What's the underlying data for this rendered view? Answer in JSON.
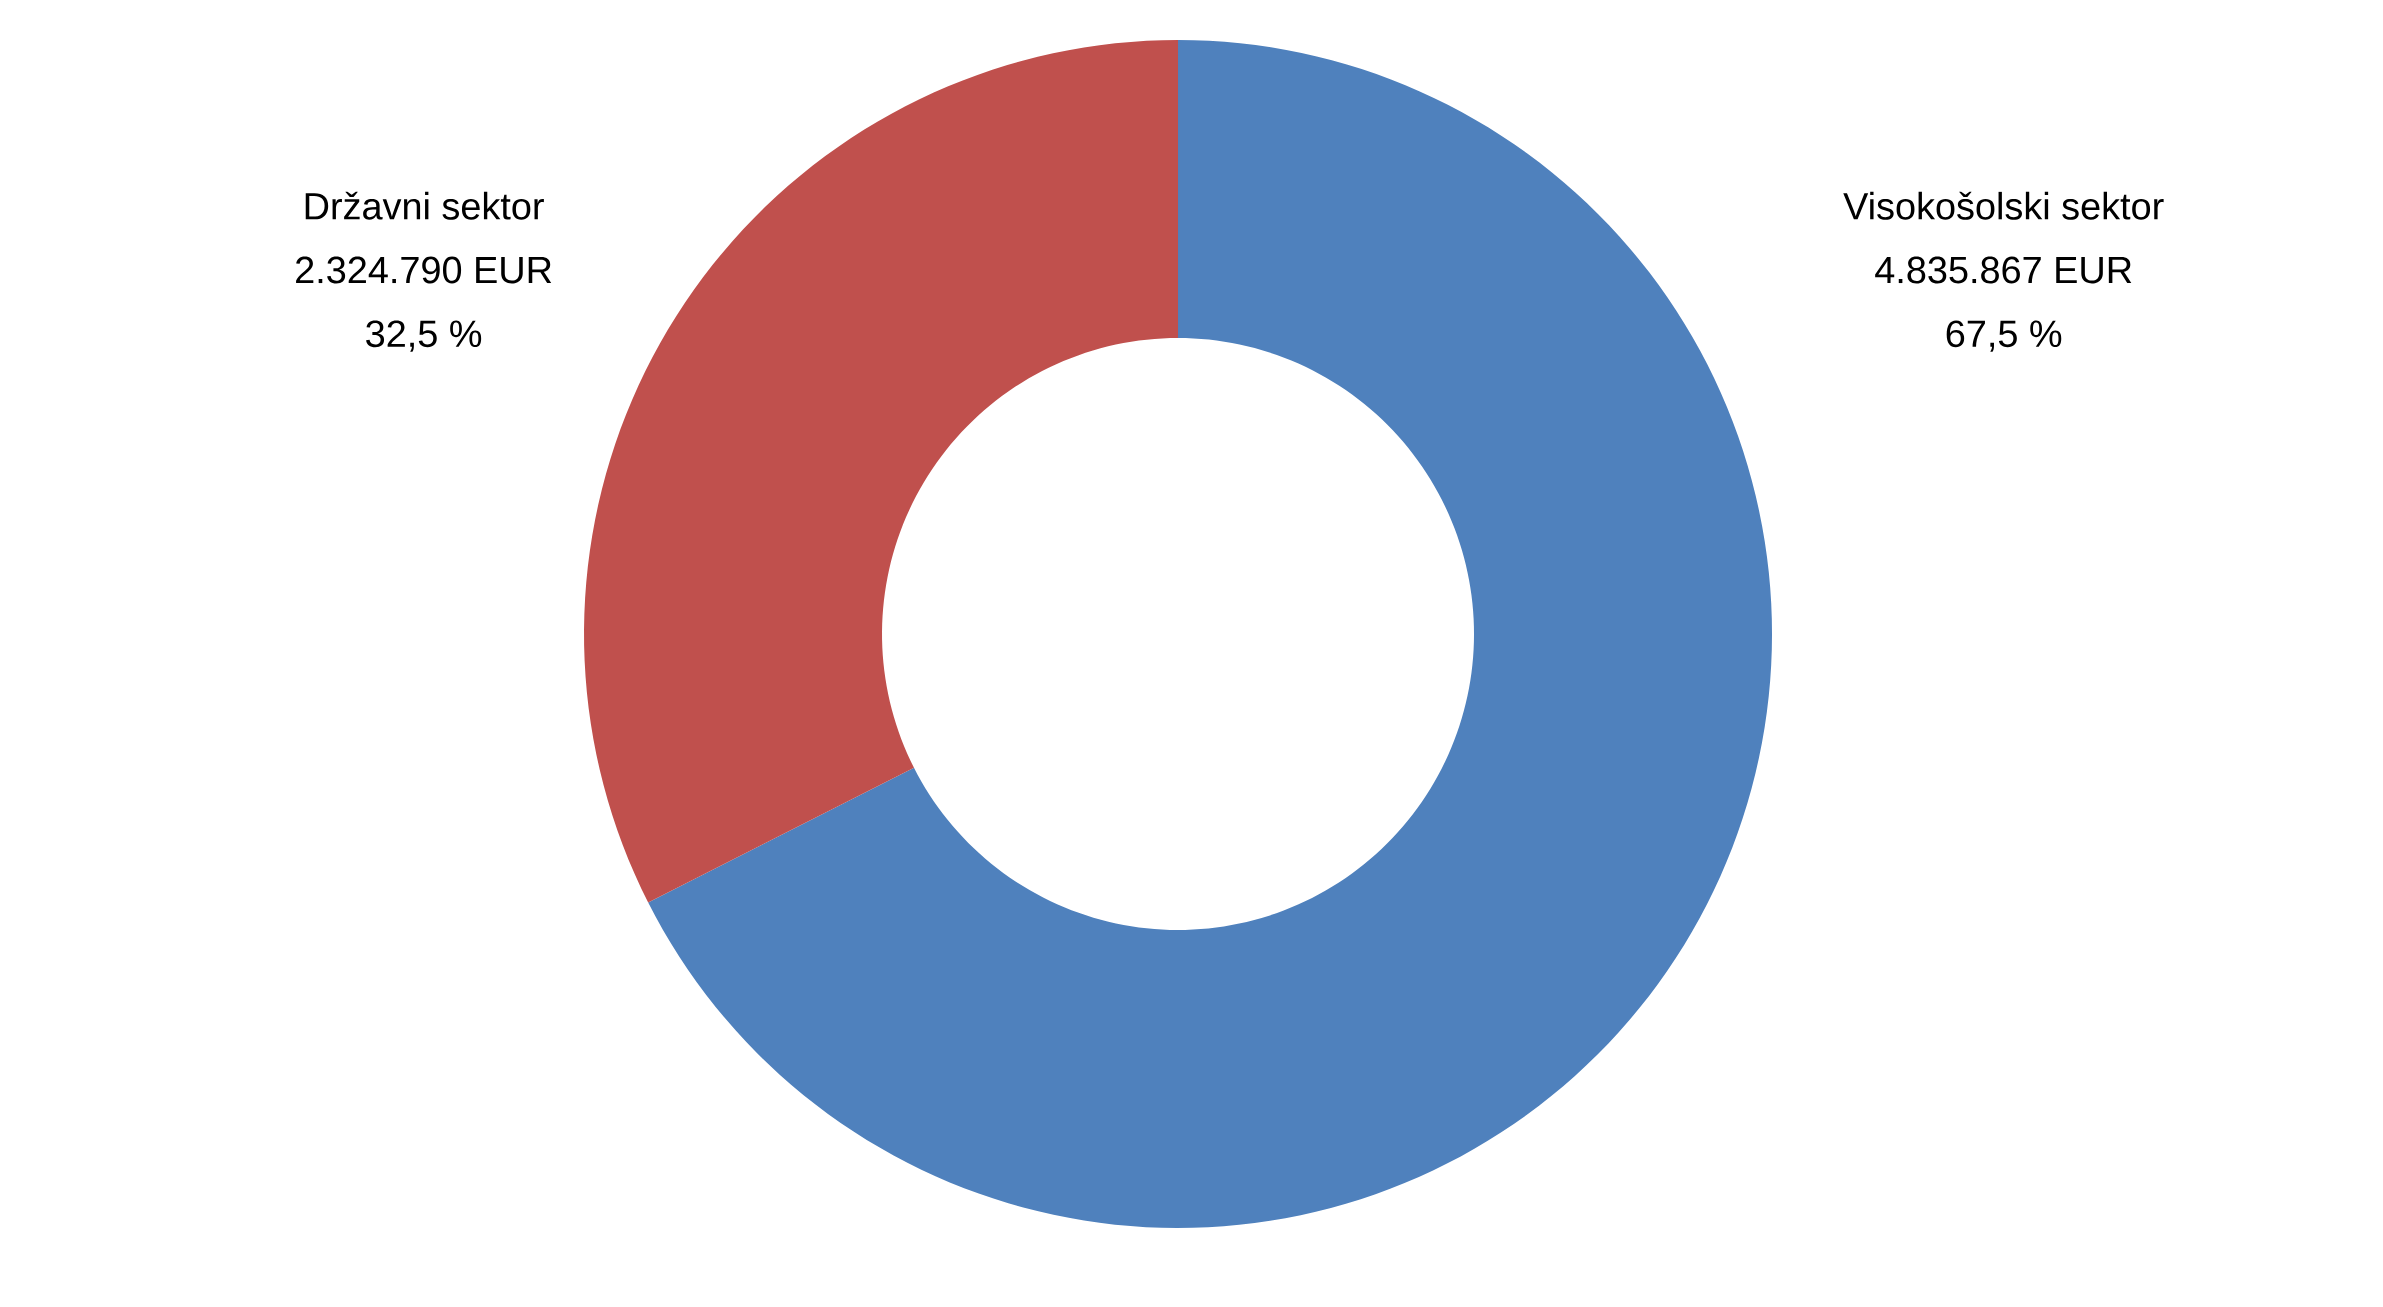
{
  "chart_data": {
    "type": "donut",
    "categories": [
      "Visokošolski sektor",
      "Državni sektor"
    ],
    "values": [
      4835867,
      2324790
    ],
    "value_labels": [
      "4.835.867 EUR",
      "2.324.790 EUR"
    ],
    "annotations": [
      "67,5 %",
      "32,5 %"
    ],
    "colors": [
      "#4f81bd",
      "#c0504d"
    ]
  }
}
